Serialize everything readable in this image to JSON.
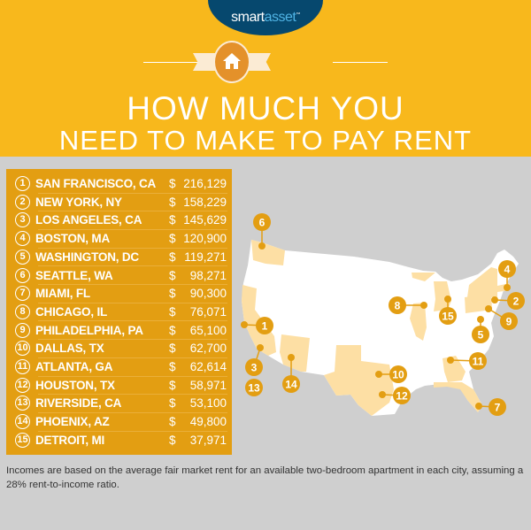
{
  "brand": {
    "name_part1": "smart",
    "name_part2": "asset",
    "trademark": "™"
  },
  "header": {
    "title_line1": "HOW MUCH YOU",
    "title_line2": "NEED TO MAKE TO PAY RENT",
    "icon": "house-icon"
  },
  "colors": {
    "header_bg": "#f8b81c",
    "panel_bg": "#e39e12",
    "highlight_state": "#fddfa4",
    "marker": "#e39e12",
    "background": "#cfcfcf"
  },
  "rankings": [
    {
      "rank": "1",
      "city": "SAN FRANCISCO, CA",
      "currency": "$",
      "income": "216,129"
    },
    {
      "rank": "2",
      "city": "NEW YORK, NY",
      "currency": "$",
      "income": "158,229"
    },
    {
      "rank": "3",
      "city": "LOS ANGELES, CA",
      "currency": "$",
      "income": "145,629"
    },
    {
      "rank": "4",
      "city": "BOSTON, MA",
      "currency": "$",
      "income": "120,900"
    },
    {
      "rank": "5",
      "city": "WASHINGTON, DC",
      "currency": "$",
      "income": "119,271"
    },
    {
      "rank": "6",
      "city": "SEATTLE, WA",
      "currency": "$",
      "income": "98,271"
    },
    {
      "rank": "7",
      "city": "MIAMI, FL",
      "currency": "$",
      "income": "90,300"
    },
    {
      "rank": "8",
      "city": "CHICAGO, IL",
      "currency": "$",
      "income": "76,071"
    },
    {
      "rank": "9",
      "city": "PHILADELPHIA, PA",
      "currency": "$",
      "income": "65,100"
    },
    {
      "rank": "10",
      "city": "DALLAS, TX",
      "currency": "$",
      "income": "62,700"
    },
    {
      "rank": "11",
      "city": "ATLANTA, GA",
      "currency": "$",
      "income": "62,614"
    },
    {
      "rank": "12",
      "city": "HOUSTON, TX",
      "currency": "$",
      "income": "58,971"
    },
    {
      "rank": "13",
      "city": "RIVERSIDE, CA",
      "currency": "$",
      "income": "53,100"
    },
    {
      "rank": "14",
      "city": "PHOENIX, AZ",
      "currency": "$",
      "income": "49,800"
    },
    {
      "rank": "15",
      "city": "DETROIT, MI",
      "currency": "$",
      "income": "37,971"
    }
  ],
  "footnote": "Incomes are based on the average fair market rent for an available two-bedroom apartment in each city, assuming a 28% rent-to-income ratio."
}
